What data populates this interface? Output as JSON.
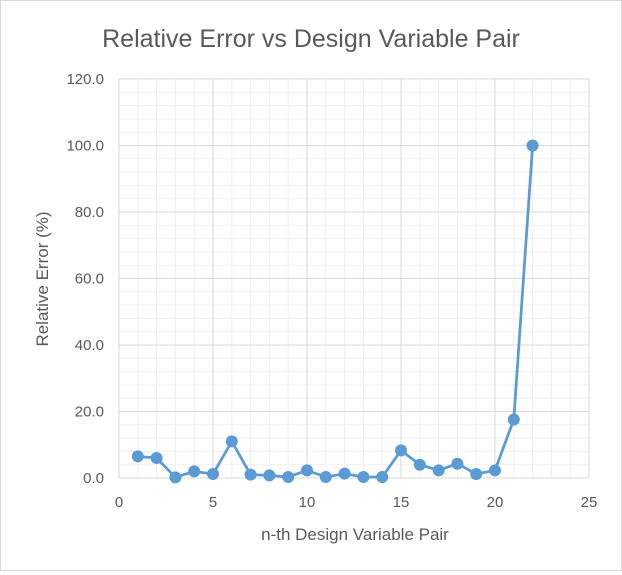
{
  "chart_data": {
    "type": "scatter",
    "title": "Relative Error vs Design Variable Pair",
    "xlabel": "n-th Design Variable Pair",
    "ylabel": "Relative Error (%)",
    "xlim": [
      0,
      25
    ],
    "ylim": [
      0,
      120
    ],
    "x_ticks": [
      0,
      5,
      10,
      15,
      20,
      25
    ],
    "x_tick_labels": [
      "0",
      "5",
      "10",
      "15",
      "20",
      "25"
    ],
    "y_ticks": [
      0,
      20,
      40,
      60,
      80,
      100,
      120
    ],
    "y_tick_labels": [
      "0.0",
      "20.0",
      "40.0",
      "60.0",
      "80.0",
      "100.0",
      "120.0"
    ],
    "grid": true,
    "minor_grid": true,
    "markers": true,
    "lines": "straight",
    "series": [
      {
        "color": "#5b9bd5",
        "points": [
          {
            "x": 1,
            "y": 6.5
          },
          {
            "x": 2,
            "y": 6.0
          },
          {
            "x": 3,
            "y": 0.2
          },
          {
            "x": 4,
            "y": 2.0
          },
          {
            "x": 5,
            "y": 1.2
          },
          {
            "x": 6,
            "y": 11.0
          },
          {
            "x": 7,
            "y": 1.0
          },
          {
            "x": 8,
            "y": 0.8
          },
          {
            "x": 9,
            "y": 0.3
          },
          {
            "x": 10,
            "y": 2.3
          },
          {
            "x": 11,
            "y": 0.3
          },
          {
            "x": 12,
            "y": 1.3
          },
          {
            "x": 13,
            "y": 0.3
          },
          {
            "x": 14,
            "y": 0.3
          },
          {
            "x": 15,
            "y": 8.3
          },
          {
            "x": 16,
            "y": 4.0
          },
          {
            "x": 17,
            "y": 2.3
          },
          {
            "x": 18,
            "y": 4.3
          },
          {
            "x": 19,
            "y": 1.2
          },
          {
            "x": 20,
            "y": 2.3
          },
          {
            "x": 21,
            "y": 17.6
          },
          {
            "x": 22,
            "y": 100.0
          }
        ]
      }
    ]
  }
}
